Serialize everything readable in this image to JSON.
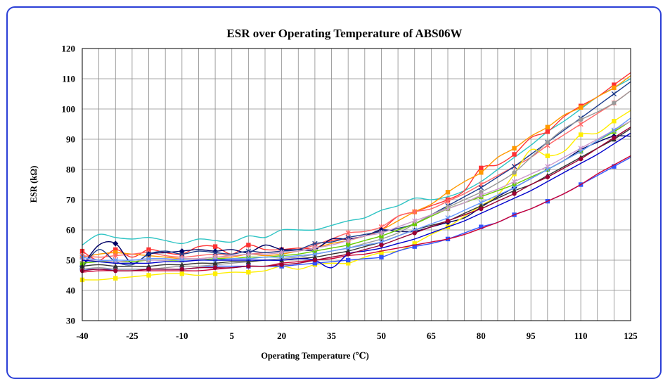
{
  "chart_data": {
    "type": "line",
    "title": "ESR over Operating Temperature of ABS06W",
    "xlabel": "Operating Temperature (℃)",
    "ylabel": "ESR (kΩ)",
    "xlim": [
      -40,
      125
    ],
    "ylim": [
      30,
      120
    ],
    "x_ticks": [
      -40,
      -25,
      -10,
      5,
      20,
      35,
      50,
      65,
      80,
      95,
      110,
      125
    ],
    "y_ticks": [
      30,
      40,
      50,
      60,
      70,
      80,
      90,
      100,
      110,
      120
    ],
    "x_grid_step": 5,
    "grid": true,
    "legend": "none",
    "x": [
      -40,
      -35,
      -30,
      -25,
      -20,
      -15,
      -10,
      -5,
      0,
      5,
      10,
      15,
      20,
      25,
      30,
      35,
      40,
      45,
      50,
      55,
      60,
      65,
      70,
      75,
      80,
      85,
      90,
      95,
      100,
      105,
      110,
      115,
      120,
      125
    ],
    "series": [
      {
        "color": "#2ec4c4",
        "marker": "none",
        "values": [
          55,
          58.5,
          57.5,
          57,
          57.5,
          56.5,
          55.5,
          57,
          56.5,
          56,
          58,
          57.5,
          60,
          60,
          60,
          61.5,
          63,
          64,
          66.5,
          68,
          70.5,
          70,
          71,
          73,
          76,
          80,
          84,
          88,
          92.5,
          96,
          100,
          104,
          107,
          110
        ]
      },
      {
        "color": "#ff3333",
        "marker": "square",
        "values": [
          53,
          50,
          53.5,
          51,
          53.5,
          52.5,
          52,
          54.5,
          54.5,
          52,
          55,
          53.5,
          53.5,
          54,
          54,
          56.5,
          57,
          58,
          60,
          64.5,
          66,
          68,
          70,
          73,
          80.5,
          81.5,
          85,
          90.5,
          92.5,
          97.5,
          101,
          104,
          108,
          112
        ]
      },
      {
        "color": "#ff9900",
        "marker": "square",
        "values": [
          51,
          52,
          52.5,
          52,
          51.5,
          51,
          50.5,
          50.5,
          51,
          51,
          52,
          51.5,
          52,
          53,
          54,
          55.5,
          56.5,
          58,
          60,
          63,
          66,
          68.5,
          72.5,
          76,
          79,
          84,
          87,
          91,
          94,
          98,
          100.5,
          104,
          107,
          111
        ]
      },
      {
        "color": "#ff6666",
        "marker": "star",
        "values": [
          51.5,
          51,
          51.5,
          52,
          52.5,
          51.5,
          51,
          51.5,
          52,
          51.5,
          52,
          52.5,
          53,
          53.5,
          55,
          57,
          59,
          59.5,
          61,
          64.5,
          66,
          67,
          69.5,
          72,
          75,
          78,
          81,
          84,
          88,
          91.5,
          95,
          98.5,
          102,
          106
        ]
      },
      {
        "color": "#000066",
        "marker": "diamond",
        "values": [
          48,
          55,
          55.5,
          49,
          52,
          52.5,
          53,
          53.5,
          53,
          53.5,
          52.5,
          55,
          53.5,
          53.5,
          53.5,
          57,
          57,
          58,
          60,
          59.5,
          59.5,
          61,
          62.5,
          64,
          67.5,
          71,
          74,
          77,
          80,
          83,
          86.5,
          89,
          91,
          91
        ]
      },
      {
        "color": "#1a3b8c",
        "marker": "cross",
        "values": [
          47.5,
          53.5,
          49.5,
          48.5,
          52,
          53,
          52,
          53,
          52.5,
          52,
          53,
          52.5,
          53,
          53.5,
          55.5,
          56,
          57.5,
          58.5,
          59.5,
          60.5,
          62,
          65,
          68,
          71,
          74,
          77.5,
          81,
          85,
          89,
          93,
          97,
          101,
          105,
          109
        ]
      },
      {
        "color": "#ffee00",
        "marker": "square",
        "values": [
          43.5,
          43.5,
          44,
          44.5,
          45,
          45.5,
          45.5,
          45,
          45.5,
          46,
          46,
          46.5,
          48,
          47,
          48.5,
          49,
          49,
          51,
          52.5,
          53,
          55.5,
          58.5,
          61,
          64.5,
          68,
          71.5,
          78.5,
          86.5,
          84.5,
          86,
          91.5,
          92,
          96,
          99.5
        ]
      },
      {
        "color": "#3355ff",
        "marker": "square",
        "values": [
          47,
          47,
          47,
          47,
          47,
          47,
          47,
          47.5,
          48,
          48,
          48,
          48,
          48,
          48.5,
          49,
          49.5,
          50,
          50.5,
          51,
          53,
          54.5,
          55.5,
          57,
          59,
          61,
          62.5,
          65,
          67,
          69.5,
          72,
          75,
          78,
          81,
          84
        ]
      },
      {
        "color": "#cc0033",
        "marker": "none",
        "values": [
          46,
          46.5,
          46.5,
          46.5,
          46.5,
          46.5,
          46.5,
          46.5,
          47,
          47.5,
          48,
          48,
          49,
          49.5,
          50,
          50.5,
          51.5,
          52,
          53,
          54,
          55,
          56,
          57,
          58.5,
          60.5,
          62.5,
          65,
          67,
          69.5,
          72,
          75,
          78.5,
          81.5,
          84.5
        ]
      },
      {
        "color": "#999999",
        "marker": "circle",
        "values": [
          47,
          47.5,
          47,
          47,
          47,
          47.5,
          48,
          48,
          48.5,
          49,
          49.5,
          50,
          50.5,
          51,
          52,
          53,
          54,
          55.5,
          57,
          59,
          62,
          65,
          67.5,
          70,
          72.5,
          75.5,
          79,
          84,
          89,
          93.5,
          96.5,
          99,
          102,
          106
        ]
      },
      {
        "color": "#66cc00",
        "marker": "square",
        "values": [
          49,
          49.5,
          49.5,
          49.5,
          50,
          50,
          50,
          50,
          50.5,
          50.5,
          51,
          51,
          51.5,
          52,
          53,
          54,
          55,
          56.5,
          58,
          60,
          62,
          64.5,
          67,
          69,
          71,
          73,
          75,
          77.5,
          80,
          83,
          86,
          89.5,
          92.5,
          96
        ]
      },
      {
        "color": "#cc99cc",
        "marker": "star",
        "values": [
          50,
          50,
          49.5,
          50,
          50,
          50,
          50.5,
          50.5,
          51,
          51.5,
          52,
          52,
          52.5,
          53,
          54,
          55,
          56.5,
          58,
          59,
          61,
          63,
          65,
          67,
          69,
          71.5,
          73.5,
          76,
          78.5,
          81,
          84,
          87,
          90,
          93,
          96
        ]
      },
      {
        "color": "#333333",
        "marker": "triangle",
        "values": [
          48,
          48.5,
          48,
          48,
          48,
          48.5,
          48.5,
          49,
          49,
          49.5,
          49.5,
          50,
          50,
          50.5,
          51,
          52,
          53,
          54.5,
          56,
          58,
          60,
          61.5,
          63,
          65.5,
          68,
          70.5,
          73,
          75,
          78,
          81,
          84,
          87,
          90,
          93.5
        ]
      },
      {
        "color": "#6699ff",
        "marker": "cross",
        "values": [
          51,
          50,
          50,
          50,
          50.5,
          50.5,
          50,
          50,
          50,
          50.5,
          50.5,
          51,
          51,
          51.5,
          52,
          53,
          54,
          55,
          56,
          58,
          60,
          62,
          64,
          66.5,
          69,
          71.5,
          74,
          77,
          80,
          83,
          86,
          89.5,
          93,
          97
        ]
      },
      {
        "color": "#0000cc",
        "marker": "none",
        "values": [
          50,
          49.5,
          49,
          49,
          49,
          49.5,
          49.5,
          50,
          50,
          50,
          50,
          50,
          50,
          50.5,
          50,
          47.5,
          52,
          53,
          54,
          55.5,
          57,
          59,
          61,
          63,
          65.5,
          68,
          70.5,
          73,
          76,
          79,
          82,
          85,
          88.5,
          92
        ]
      },
      {
        "color": "#990033",
        "marker": "circle",
        "values": [
          46.5,
          47,
          46.5,
          46.5,
          47,
          47,
          47,
          47.5,
          47.5,
          47.5,
          48,
          48,
          48.5,
          49,
          50,
          51,
          52,
          53.5,
          55,
          57,
          59,
          61,
          63,
          65,
          67,
          69.5,
          72,
          75,
          77.5,
          80.5,
          83.5,
          87,
          90.5,
          94
        ]
      }
    ]
  }
}
